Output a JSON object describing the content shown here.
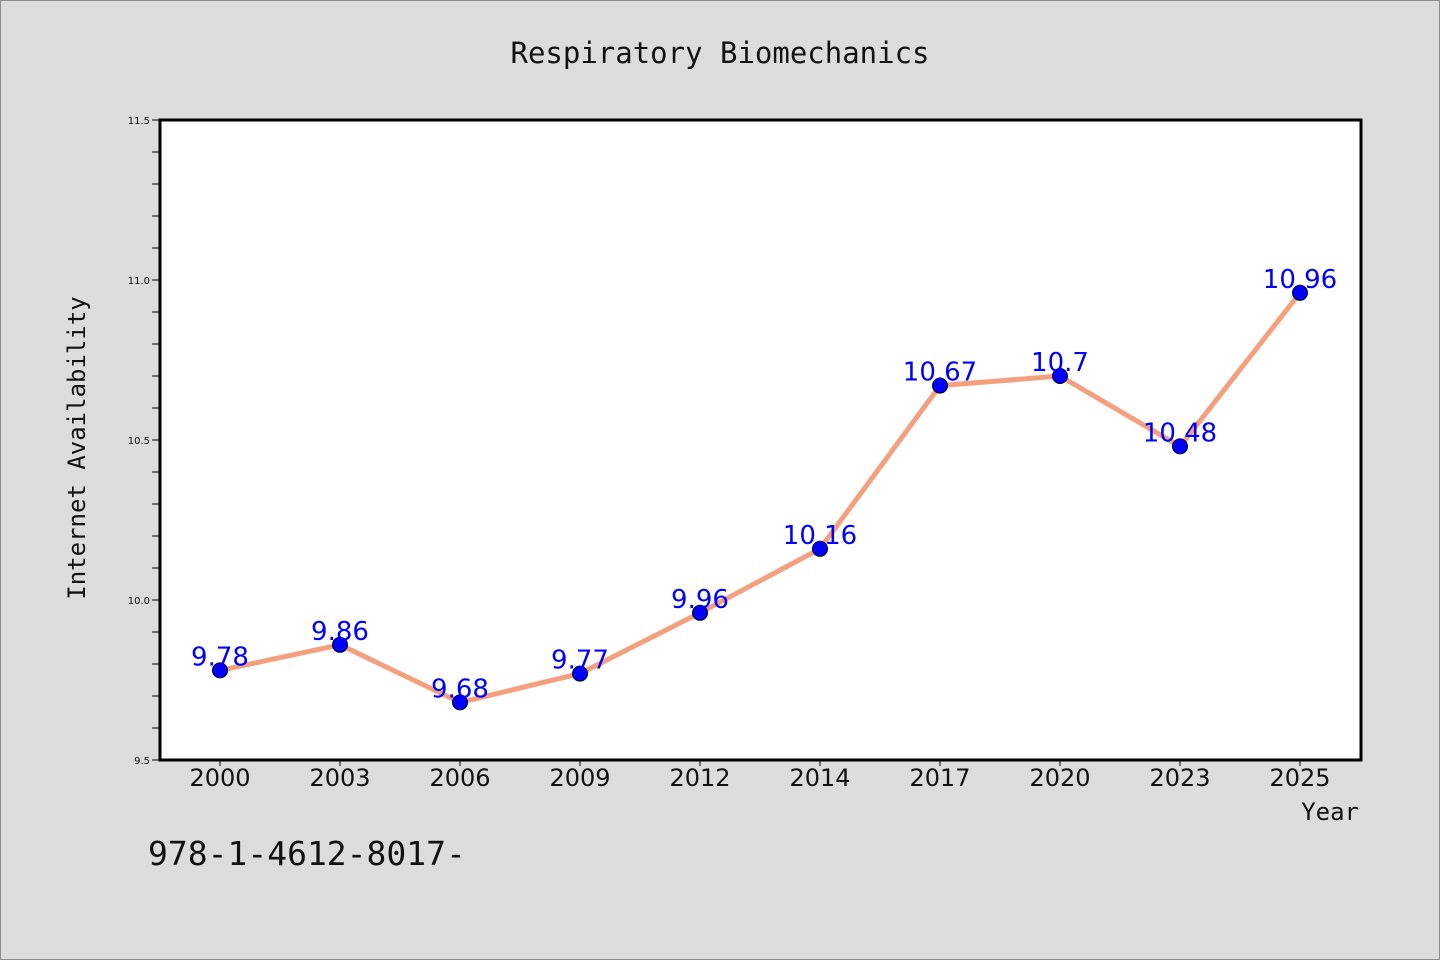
{
  "chart_data": {
    "type": "line",
    "title": "Respiratory Biomechanics",
    "xlabel": "Year",
    "ylabel": "Internet Availability",
    "categories": [
      "2000",
      "2003",
      "2006",
      "2009",
      "2012",
      "2014",
      "2017",
      "2020",
      "2023",
      "2025"
    ],
    "values": [
      9.78,
      9.86,
      9.68,
      9.77,
      9.96,
      10.16,
      10.67,
      10.7,
      10.48,
      10.96
    ],
    "data_labels": [
      "9.78",
      "9.86",
      "9.68",
      "9.77",
      "9.96",
      "10.16",
      "10.67",
      "10.7",
      "10.48",
      "10.96"
    ],
    "ylim": [
      9.5,
      11.5
    ],
    "yticks": [
      "9.5",
      "10.0",
      "10.5",
      "11.0",
      "11.5"
    ],
    "grid": false,
    "legend": "none",
    "colors": {
      "line": "#f4a07e",
      "marker": "#0000ff",
      "data_label": "#0000ff",
      "background": "#dcdcdc",
      "plot_area": "#ffffff"
    }
  },
  "footnote": "978-1-4612-8017-"
}
